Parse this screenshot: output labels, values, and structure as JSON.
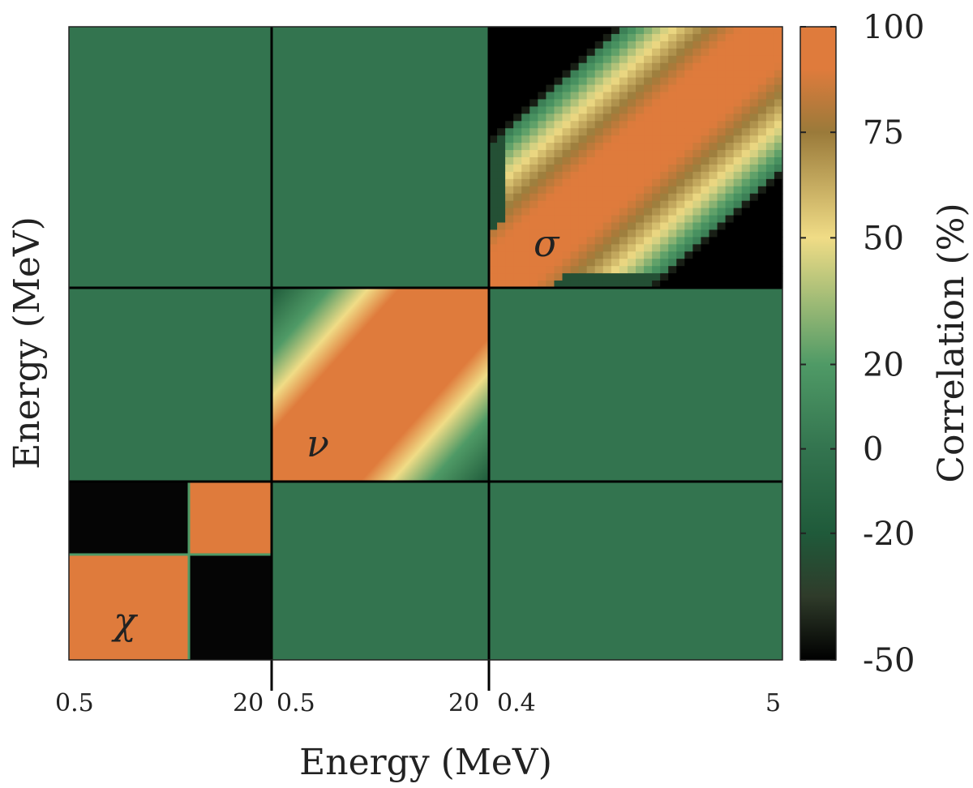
{
  "chart_data": {
    "type": "heatmap",
    "title": "",
    "xlabel": "Energy (MeV)",
    "ylabel": "Energy (MeV)",
    "colorbar": {
      "label": "Correlation (%)",
      "ticks": [
        "100",
        "75",
        "50",
        "20",
        "0",
        "-20",
        "-50"
      ],
      "tick_values": [
        100,
        75,
        50,
        20,
        0,
        -20,
        -50
      ],
      "range": [
        -50,
        100
      ],
      "colors": [
        "#000000",
        "#2f3b2a",
        "#1f5a3a",
        "#33744f",
        "#4f9a66",
        "#f0dc86",
        "#9a7a3a",
        "#df7b3c",
        "#df7b3c"
      ],
      "color_stops": [
        -50,
        -35,
        -20,
        0,
        20,
        50,
        75,
        90,
        100
      ]
    },
    "blocks": [
      {
        "name": "chi",
        "symbol": "χ",
        "xrange_labels": [
          "0.5",
          "20"
        ]
      },
      {
        "name": "nu",
        "symbol": "ν",
        "xrange_labels": [
          "0.5",
          "20"
        ]
      },
      {
        "name": "sigma",
        "symbol": "σ",
        "xrange_labels": [
          "0.4",
          "5"
        ]
      }
    ],
    "x_tick_labels": [
      "0.5",
      "20",
      "0.5",
      "20",
      "0.4",
      "5"
    ],
    "off_diagonal_correlation": 0,
    "chi_block": {
      "diagonal_subblocks": 100,
      "off_diagonal_subblocks": -50
    },
    "diagonal_band_correlation": 100
  }
}
